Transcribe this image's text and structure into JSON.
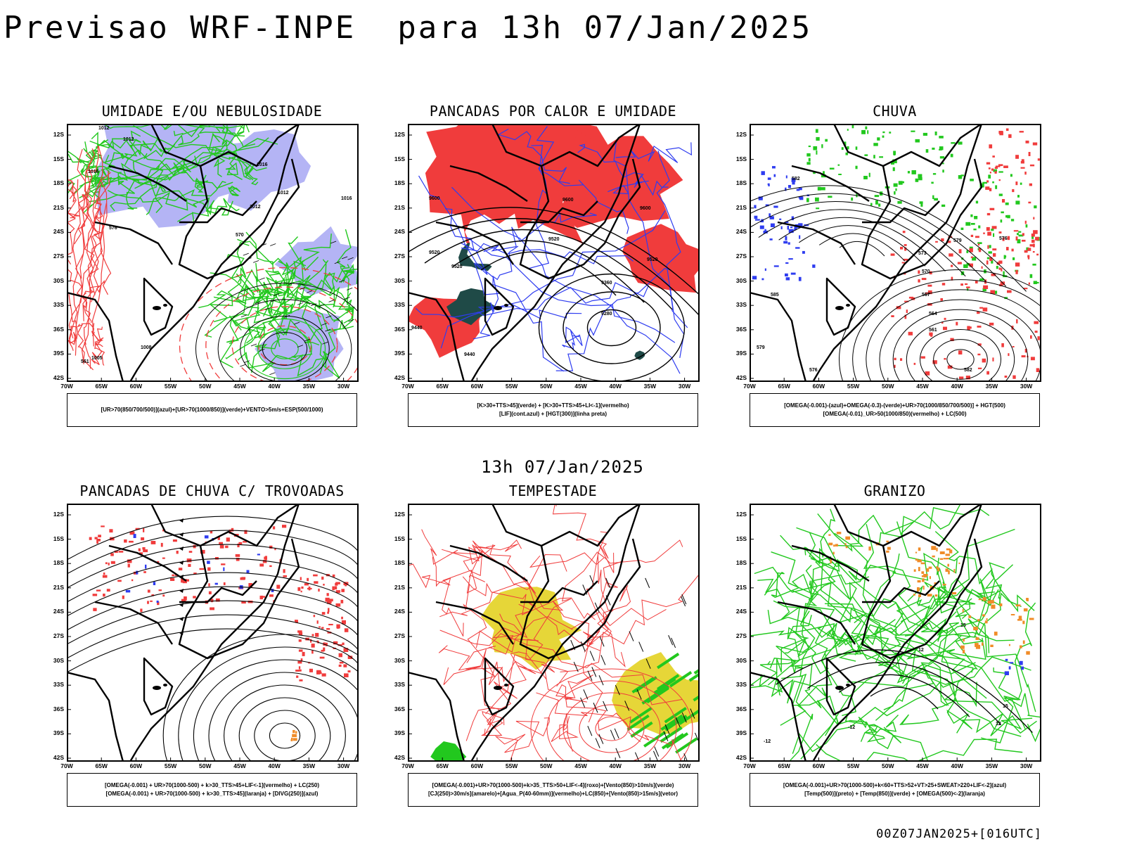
{
  "main_title": "Previsao WRF-INPE  para 13h 07/Jan/2025",
  "mid_title": "13h 07/Jan/2025",
  "footer": "00Z07JAN2025+[016UTC]",
  "lat_ticks": [
    "12S",
    "15S",
    "18S",
    "21S",
    "24S",
    "27S",
    "30S",
    "33S",
    "36S",
    "39S",
    "42S"
  ],
  "lon_ticks": [
    "70W",
    "65W",
    "60W",
    "55W",
    "50W",
    "45W",
    "40W",
    "35W",
    "30W"
  ],
  "panels": [
    {
      "title": "UMIDADE E/OU NEBULOSIDADE",
      "legend": [
        "[UR>70(850/700/500)](azul)+[UR>70(1000/850)](verde)+VENTO>5m/s+ESP(500/1000)"
      ]
    },
    {
      "title": "PANCADAS POR CALOR E UMIDADE",
      "legend": [
        "[K>30+TTS>45](verde) + [K>30+TTS>45+LI<-1](vermelho)",
        "[LIF](cont.azul) + [HGT(300)](linha preta)"
      ]
    },
    {
      "title": "CHUVA",
      "legend": [
        "[OMEGA(-0.001)-(azul)+OMEGA(-0.3)-(verde)+UR>70(1000/850/700/500)] + HGT(500)",
        "[OMEGA(-0.01)_UR>50(1000/850)(vermelho) + LC(500)"
      ]
    },
    {
      "title": "PANCADAS DE CHUVA C/ TROVOADAS",
      "legend": [
        "[OMEGA(-0.001) + UR>70(1000-500) + k>30_TTS>45+LIF<-1](vermelho) + LC(250)",
        "[OMEGA(-0.001) + UR>70(1000-500) + k>30_TTS>45](laranja) + [DIVG(250)](azul)"
      ]
    },
    {
      "title": "TEMPESTADE",
      "legend": [
        "[OMEGA(-0.001)+UR>70(1000-500)+k>35_TTS>50+LIF<-4](roxo)+[Vento(850)>10m/s](verde)",
        "[CJ(250)>30m/s](amarelo)+[Agua_P(40-60mm)](vermelho)+LC(850)+[Vento(850)>15m/s](vetor)"
      ]
    },
    {
      "title": "GRANIZO",
      "legend": [
        "[OMEGA(-0.001)+UR>70(1000-500)+k<60+TTS>52+VT>25+SWEAT>220+LIF<-2](azul)",
        "[Temp(500)](preto) + [Temp(850)](verde) + [OMEGA(500)<-2](laranja)"
      ]
    }
  ],
  "contour_labels": {
    "p1": [
      "1012",
      "1012",
      "1016",
      "1012",
      "1016",
      "1012",
      "1008",
      "1005",
      "1016",
      "576",
      "570",
      "561"
    ],
    "p2": [
      "9600",
      "9600",
      "9520",
      "9520",
      "9520",
      "9440",
      "9360",
      "9280",
      "9600",
      "9520",
      "9440"
    ],
    "p3": [
      "579",
      "576",
      "573",
      "570",
      "567",
      "564",
      "561",
      "582",
      "585",
      "582",
      "579",
      "576"
    ],
    "p6": [
      "-12",
      "-12",
      "12",
      "15",
      "12",
      "15"
    ]
  },
  "colors": {
    "blue": "#2e3cf0",
    "lavender": "#b4b4f5",
    "green": "#22c81e",
    "red": "#f03c3c",
    "darkteal": "#1f4a47",
    "yellow": "#e6d638",
    "orange": "#f08c28"
  }
}
